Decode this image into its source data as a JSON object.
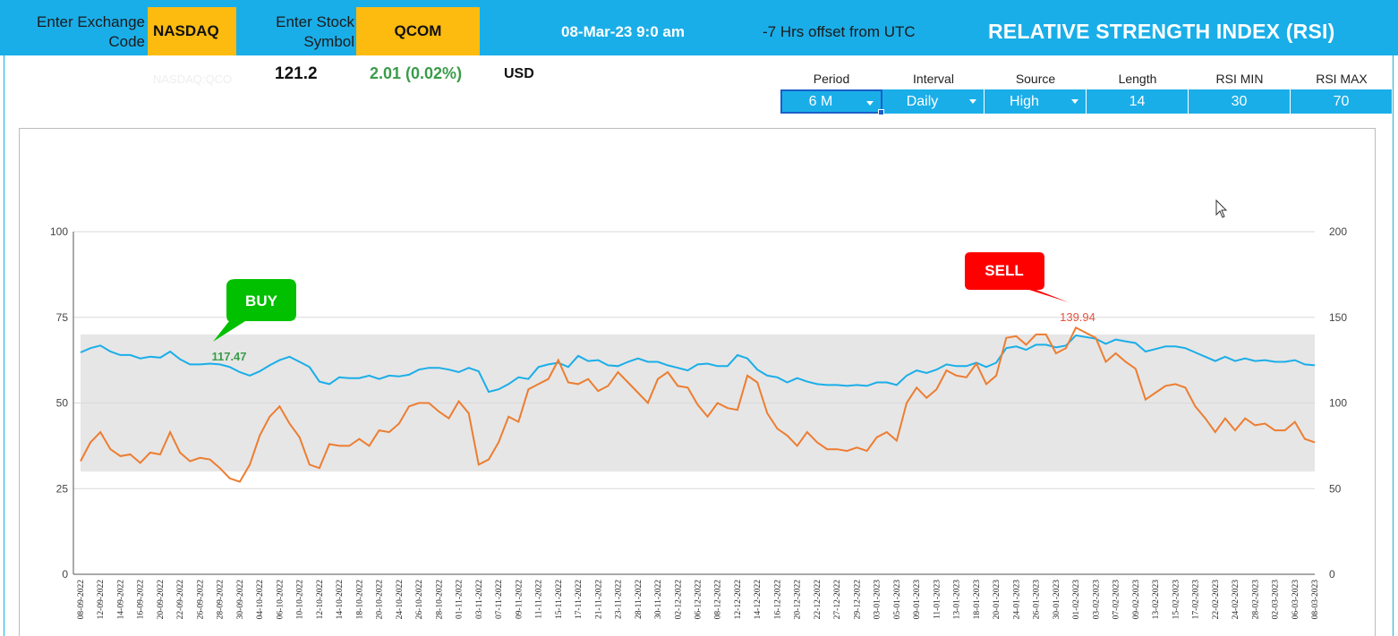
{
  "header": {
    "exchange_label": "Enter Exchange Code",
    "exchange_value": "NASDAQ",
    "symbol_label": "Enter Stock Symbol",
    "symbol_value": "QCOM",
    "datetime": "08-Mar-23 9:0 am",
    "utc_offset": "-7  Hrs offset from UTC",
    "title": "RELATIVE STRENGTH INDEX (RSI)"
  },
  "quote": {
    "ticker_ref": "NASDAQ:QCO",
    "price": "121.2",
    "change": "2.01 (0.02%)",
    "currency": "USD"
  },
  "params": {
    "period_label": "Period",
    "period_value": "6 M",
    "interval_label": "Interval",
    "interval_value": "Daily",
    "source_label": "Source",
    "source_value": "High",
    "length_label": "Length",
    "length_value": "14",
    "rsi_min_label": "RSI MIN",
    "rsi_min_value": "30",
    "rsi_max_label": "RSI MAX",
    "rsi_max_value": "70"
  },
  "colors": {
    "header_blue": "#1aaee8",
    "highlight_yellow": "#fdbb10",
    "price_line": "#1aaee8",
    "rsi_line": "#ed7d31",
    "buy_green": "#00c000",
    "sell_red": "#ff0000",
    "band_gray": "#e6e6e6"
  },
  "callouts": {
    "buy_label": "BUY",
    "buy_value": "117.47",
    "sell_label": "SELL",
    "sell_value": "139.94"
  },
  "chart_data": {
    "type": "line",
    "left_axis": {
      "min": 0,
      "max": 100,
      "ticks": [
        "0",
        "25",
        "50",
        "75",
        "100"
      ]
    },
    "right_axis": {
      "min": 0,
      "max": 200,
      "ticks": [
        "0",
        "50",
        "100",
        "150",
        "200"
      ]
    },
    "band": {
      "min": 30,
      "max": 70
    },
    "grid": true,
    "x_labels": [
      "08-09-2022",
      "12-09-2022",
      "14-09-2022",
      "16-09-2022",
      "20-09-2022",
      "22-09-2022",
      "26-09-2022",
      "28-09-2022",
      "30-09-2022",
      "04-10-2022",
      "06-10-2022",
      "10-10-2022",
      "12-10-2022",
      "14-10-2022",
      "18-10-2022",
      "20-10-2022",
      "24-10-2022",
      "26-10-2022",
      "28-10-2022",
      "01-11-2022",
      "03-11-2022",
      "07-11-2022",
      "09-11-2022",
      "11-11-2022",
      "15-11-2022",
      "17-11-2022",
      "21-11-2022",
      "23-11-2022",
      "28-11-2022",
      "30-11-2022",
      "02-12-2022",
      "06-12-2022",
      "08-12-2022",
      "12-12-2022",
      "14-12-2022",
      "16-12-2022",
      "20-12-2022",
      "22-12-2022",
      "27-12-2022",
      "29-12-2022",
      "03-01-2023",
      "05-01-2023",
      "09-01-2023",
      "11-01-2023",
      "13-01-2023",
      "18-01-2023",
      "20-01-2023",
      "24-01-2023",
      "26-01-2023",
      "30-01-2023",
      "01-02-2023",
      "03-02-2023",
      "07-02-2023",
      "09-02-2023",
      "13-02-2023",
      "15-02-2023",
      "17-02-2023",
      "22-02-2023",
      "24-02-2023",
      "28-02-2023",
      "02-03-2023",
      "06-03-2023",
      "08-03-2023"
    ],
    "series": [
      {
        "axis": "right",
        "values": [
          129.5,
          132,
          133.5,
          130,
          128,
          128,
          126,
          127,
          126.5,
          130,
          125.5,
          122.5,
          122.5,
          123,
          122.5,
          121,
          118,
          116,
          118.5,
          122,
          125,
          127,
          124,
          121,
          112.5,
          111,
          115,
          114.5,
          114.5,
          116,
          114,
          116,
          115.5,
          116.5,
          119.5,
          120.5,
          120.5,
          119.5,
          118,
          120.5,
          118.5,
          106.5,
          108,
          111,
          115,
          114,
          121,
          122.5,
          123.5,
          121,
          127.5,
          124.5,
          125,
          122,
          121.5,
          124,
          126,
          124,
          124,
          122,
          120.5,
          119,
          122.5,
          123,
          121.5,
          121.5,
          128,
          126,
          119.5,
          116,
          115,
          112,
          114.5,
          112.5,
          111,
          110.5,
          110.5,
          110,
          110.5,
          110,
          112,
          112,
          110.5,
          116,
          119,
          117.5,
          119.5,
          122.5,
          121.5,
          121.5,
          123.5,
          121,
          123.5,
          132,
          133,
          131,
          134,
          134,
          132.5,
          133.5,
          139.5,
          138.5,
          137.5,
          134.5,
          137,
          136,
          135,
          130,
          131.5,
          133,
          133,
          132,
          129.5,
          127,
          124.5,
          127,
          124.5,
          126,
          124.5,
          125,
          124,
          124,
          125,
          122.5,
          122
        ]
      },
      {
        "axis": "left",
        "values": [
          33,
          38.5,
          41.5,
          36.5,
          34.5,
          35,
          32.5,
          35.5,
          35,
          41.5,
          35.5,
          33,
          34,
          33.5,
          31,
          28,
          27,
          32,
          40.5,
          46,
          49,
          44,
          40,
          32,
          31,
          38,
          37.5,
          37.5,
          39.5,
          37.5,
          42,
          41.5,
          44,
          49,
          50,
          50,
          47.5,
          45.5,
          50.5,
          47,
          32,
          33.5,
          38.5,
          46,
          44.5,
          54,
          55.5,
          57,
          62.5,
          56,
          55.5,
          57,
          53.5,
          55,
          59,
          56,
          53,
          50,
          57,
          59,
          55,
          54.5,
          49.5,
          46,
          50,
          48.5,
          48,
          58,
          56,
          47,
          42.5,
          40.5,
          37.5,
          41.5,
          38.5,
          36.5,
          36.5,
          36,
          37,
          36,
          40,
          41.5,
          39,
          50,
          54.5,
          51.5,
          54,
          59.5,
          58,
          57.5,
          61.5,
          55.5,
          58,
          69,
          69.5,
          67,
          70,
          70,
          64.5,
          66,
          72,
          70.5,
          69,
          62,
          64.5,
          62,
          60,
          51,
          53,
          55,
          55.5,
          54.5,
          49,
          45.5,
          41.5,
          45.5,
          42,
          45.5,
          43.5,
          44,
          42,
          42,
          44.5,
          39.5,
          38.5
        ]
      }
    ]
  }
}
